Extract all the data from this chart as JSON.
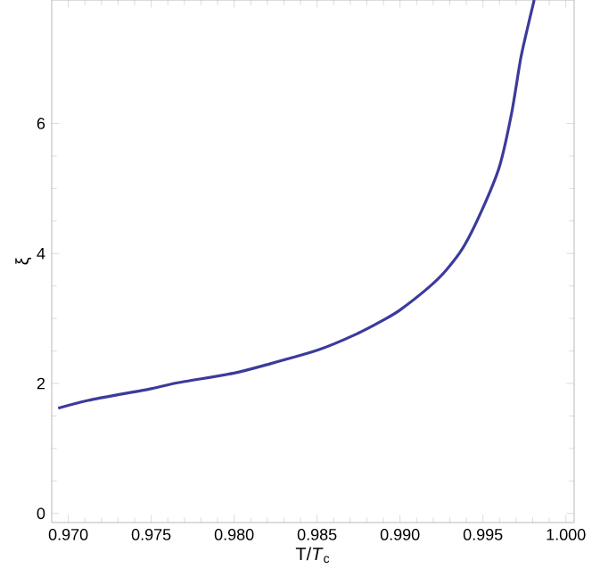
{
  "chart_data": {
    "type": "line",
    "xlabel": "T/*T*$_{c}$",
    "ylabel": "ξ",
    "x": [
      0.96939,
      0.97119,
      0.975,
      0.97658,
      0.98,
      0.98198,
      0.985,
      0.98737,
      0.98917,
      0.99,
      0.99169,
      0.99277,
      0.99385,
      0.995,
      0.996,
      0.99673,
      0.99727,
      0.99766,
      0.99809
    ],
    "series": [
      {
        "color": "#3b3b9c",
        "values": [
          1.62,
          1.74,
          1.92,
          2.01,
          2.16,
          2.29,
          2.51,
          2.76,
          3.0,
          3.13,
          3.47,
          3.74,
          4.11,
          4.7,
          5.34,
          6.16,
          6.99,
          7.44,
          7.9
        ]
      }
    ],
    "xlim": [
      0.969,
      1.0005
    ],
    "ylim": [
      -0.14,
      7.9
    ],
    "xticks": [
      {
        "value": 0.97,
        "label": "0.970"
      },
      {
        "value": 0.975,
        "label": "0.975"
      },
      {
        "value": 0.98,
        "label": "0.980"
      },
      {
        "value": 0.985,
        "label": "0.985"
      },
      {
        "value": 0.99,
        "label": "0.990"
      },
      {
        "value": 0.995,
        "label": "0.995"
      },
      {
        "value": 1.0,
        "label": "1.000"
      }
    ],
    "yticks": [
      0,
      2,
      4,
      6
    ],
    "marker": "none",
    "line_style": "solid"
  }
}
